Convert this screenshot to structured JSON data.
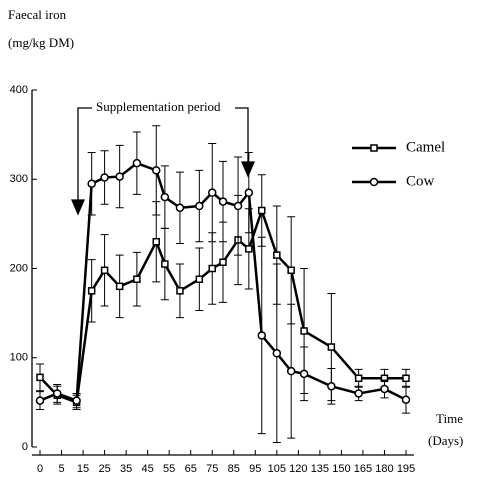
{
  "chart_data": {
    "type": "line",
    "y_label_lines": [
      "Faecal iron",
      "(mg/kg DM)"
    ],
    "x_label_lines": [
      "Time",
      "(Days)"
    ],
    "annotation": "Supplementation period",
    "x": [
      0,
      4,
      12,
      19,
      25,
      32,
      40,
      49,
      53,
      60,
      69,
      75,
      80,
      87,
      92,
      98,
      105,
      115,
      124,
      143,
      162,
      180,
      195
    ],
    "series": [
      {
        "name": "Camel",
        "color": "#000000",
        "marker": "square",
        "values": [
          78,
          58,
          50,
          175,
          198,
          180,
          188,
          230,
          205,
          175,
          188,
          200,
          207,
          232,
          222,
          265,
          215,
          198,
          130,
          112,
          77,
          77,
          77
        ],
        "errors": [
          15,
          10,
          8,
          35,
          40,
          35,
          30,
          45,
          40,
          30,
          35,
          40,
          45,
          50,
          45,
          40,
          55,
          60,
          70,
          60,
          10,
          10,
          10
        ]
      },
      {
        "name": "Cow",
        "color": "#000000",
        "marker": "circle",
        "values": [
          52,
          60,
          52,
          295,
          302,
          303,
          318,
          310,
          280,
          268,
          270,
          285,
          275,
          270,
          285,
          125,
          105,
          85,
          82,
          68,
          60,
          65,
          53
        ],
        "errors": [
          10,
          10,
          8,
          35,
          30,
          35,
          35,
          50,
          35,
          40,
          40,
          55,
          45,
          55,
          45,
          110,
          100,
          75,
          30,
          20,
          8,
          10,
          15
        ]
      }
    ],
    "xlim": [
      0,
      195
    ],
    "xticks": [
      0,
      5,
      15,
      25,
      35,
      45,
      55,
      65,
      75,
      85,
      95,
      105,
      120,
      135,
      150,
      165,
      180,
      195
    ],
    "ylim": [
      0,
      400
    ],
    "yticks": [
      0,
      100,
      200,
      300,
      400
    ],
    "legend": "upper right"
  }
}
